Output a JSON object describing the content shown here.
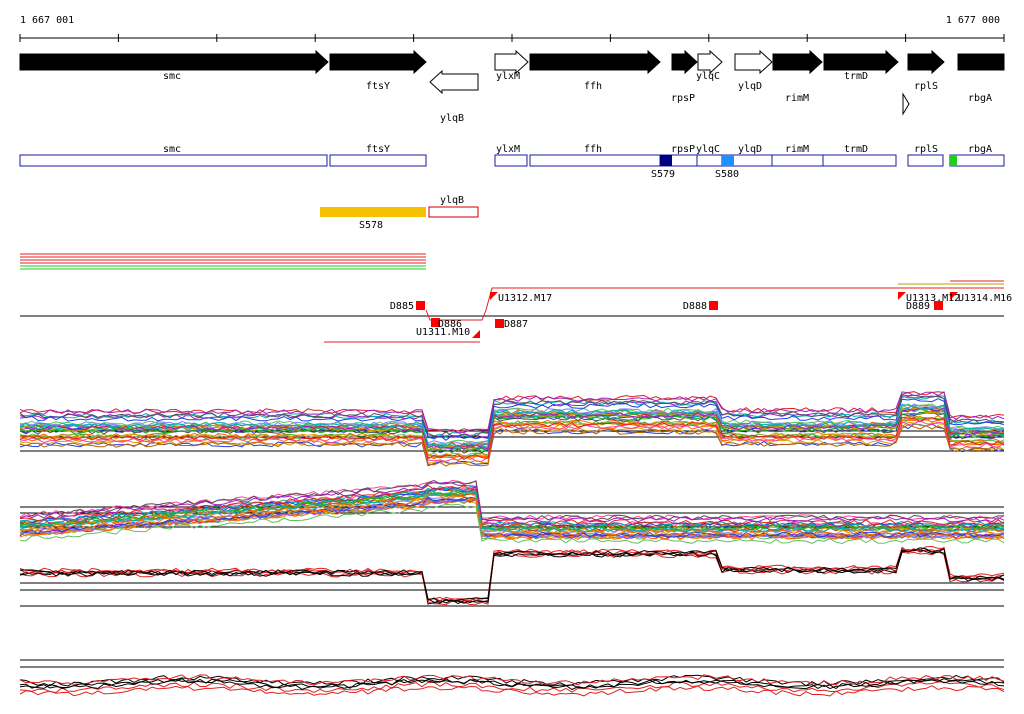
{
  "ruler": {
    "start": "1 667 001",
    "end": "1 677 000"
  },
  "genes": [
    "smc",
    "ftsY",
    "ylqB",
    "ylxM",
    "ffh",
    "rpsP",
    "ylqC",
    "ylqD",
    "rimM",
    "trmD",
    "rplS",
    "rbgA"
  ],
  "transcripts": [
    "smc",
    "ftsY",
    "ylxM",
    "ffh",
    "rpsP",
    "ylqC",
    "ylqD",
    "rimM",
    "trmD",
    "rplS",
    "rbgA"
  ],
  "sites": [
    "S579",
    "S580"
  ],
  "antisense": {
    "gene": "ylqB",
    "site": "S578"
  },
  "segments": [
    "D885",
    "D886",
    "U1311.M10",
    "U1312.M17",
    "D887",
    "D888",
    "U1313.M12",
    "D889",
    "U1314.M16"
  ]
}
